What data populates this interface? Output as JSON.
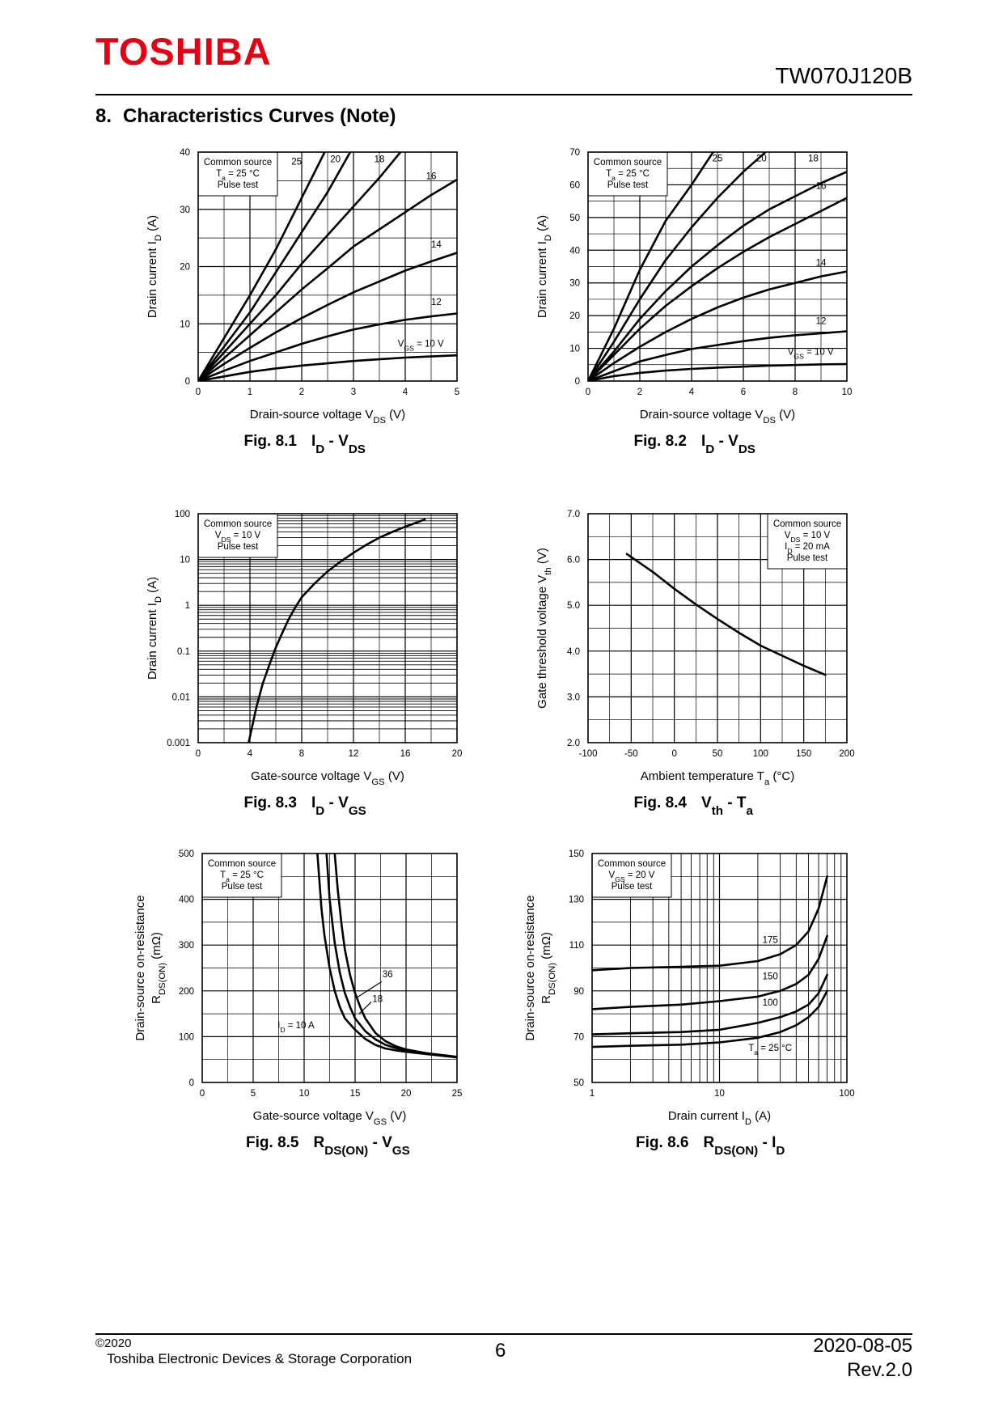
{
  "header": {
    "brand": "TOSHIBA",
    "doc_id": "TW070J120B",
    "section_number": "8.",
    "section_title": "Characteristics Curves (Note)"
  },
  "footer": {
    "copyright": "©2020",
    "company": "Toshiba Electronic Devices & Storage Corporation",
    "page": "6",
    "date": "2020-08-05",
    "revision": "Rev.2.0"
  },
  "chart_data": [
    {
      "id": "fig81",
      "type": "line",
      "fig_label": "Fig. 8.1",
      "fig_title": [
        "I",
        "D",
        " - V",
        "DS"
      ],
      "xlabel": [
        "Drain-source voltage  V",
        "DS",
        "  (V)"
      ],
      "ylabel": [
        "Drain current  I",
        "D",
        "  (A)"
      ],
      "x": {
        "scale": "linear",
        "min": 0,
        "max": 5,
        "ticks": [
          0,
          1,
          2,
          3,
          4,
          5
        ],
        "minor": 0.5
      },
      "y": {
        "scale": "linear",
        "min": 0,
        "max": 40,
        "ticks": [
          0,
          10,
          20,
          30,
          40
        ],
        "minor": 5
      },
      "legend_box": [
        [
          "Common source"
        ],
        [
          "T",
          "a",
          " = 25 °C"
        ],
        [
          "Pulse test"
        ]
      ],
      "series": [
        {
          "name": "25",
          "x": [
            0,
            0.5,
            1,
            1.5,
            2,
            2.5
          ],
          "y": [
            0,
            7.5,
            15,
            23,
            32,
            41
          ]
        },
        {
          "name": "20",
          "x": [
            0,
            0.5,
            1,
            1.5,
            2,
            2.5,
            3
          ],
          "y": [
            0,
            6,
            12,
            19,
            26,
            33,
            41
          ]
        },
        {
          "name": "18",
          "x": [
            0,
            0.5,
            1,
            1.5,
            2,
            2.5,
            3,
            3.5,
            4
          ],
          "y": [
            0,
            5,
            10,
            15,
            20.5,
            25.5,
            30.5,
            35.5,
            41
          ]
        },
        {
          "name": "16",
          "x": [
            0,
            0.5,
            1,
            1.5,
            2,
            2.5,
            3,
            3.5,
            4,
            4.5,
            5
          ],
          "y": [
            0,
            4,
            8,
            12,
            16,
            19.7,
            23.5,
            26.5,
            29.5,
            32.5,
            35.2
          ]
        },
        {
          "name": "14",
          "x": [
            0,
            0.5,
            1,
            1.5,
            2,
            2.5,
            3,
            3.5,
            4,
            4.5,
            5
          ],
          "y": [
            0,
            3,
            5.8,
            8.5,
            11,
            13.3,
            15.5,
            17.4,
            19.3,
            20.9,
            22.4
          ]
        },
        {
          "name": "12",
          "x": [
            0,
            0.5,
            1,
            1.5,
            2,
            2.5,
            3,
            3.5,
            4,
            4.5,
            5
          ],
          "y": [
            0,
            1.8,
            3.5,
            5,
            6.5,
            7.8,
            9,
            9.9,
            10.7,
            11.3,
            11.8
          ]
        },
        {
          "name": "V_GS = 10 V",
          "x": [
            0,
            0.5,
            1,
            1.5,
            2,
            2.5,
            3,
            3.5,
            4,
            4.5,
            5
          ],
          "y": [
            0,
            0.8,
            1.6,
            2.2,
            2.7,
            3.1,
            3.5,
            3.8,
            4.1,
            4.3,
            4.5
          ]
        }
      ],
      "curve_labels": [
        {
          "text": [
            "25"
          ],
          "x": 1.9,
          "y": 37.8
        },
        {
          "text": [
            "20"
          ],
          "x": 2.65,
          "y": 38.2
        },
        {
          "text": [
            "18"
          ],
          "x": 3.5,
          "y": 38.2
        },
        {
          "text": [
            "16"
          ],
          "x": 4.5,
          "y": 35.3
        },
        {
          "text": [
            "14"
          ],
          "x": 4.6,
          "y": 23.3
        },
        {
          "text": [
            "12"
          ],
          "x": 4.6,
          "y": 13.3
        },
        {
          "text": [
            "V",
            "GS",
            " = 10 V"
          ],
          "x": 4.3,
          "y": 6
        }
      ]
    },
    {
      "id": "fig82",
      "type": "line",
      "fig_label": "Fig. 8.2",
      "fig_title": [
        "I",
        "D",
        " - V",
        "DS"
      ],
      "xlabel": [
        "Drain-source voltage  V",
        "DS",
        "  (V)"
      ],
      "ylabel": [
        "Drain current  I",
        "D",
        "  (A)"
      ],
      "x": {
        "scale": "linear",
        "min": 0,
        "max": 10,
        "ticks": [
          0,
          2,
          4,
          6,
          8,
          10
        ],
        "minor": 1
      },
      "y": {
        "scale": "linear",
        "min": 0,
        "max": 70,
        "ticks": [
          0,
          10,
          20,
          30,
          40,
          50,
          60,
          70
        ],
        "minor": 5
      },
      "legend_box": [
        [
          "Common source"
        ],
        [
          "T",
          "a",
          " = 25 °C"
        ],
        [
          "Pulse test"
        ]
      ],
      "series": [
        {
          "name": "25",
          "x": [
            0,
            1,
            2,
            3,
            4,
            5
          ],
          "y": [
            0,
            16,
            34,
            49,
            60,
            72
          ]
        },
        {
          "name": "20",
          "x": [
            0,
            1,
            2,
            3,
            4,
            5,
            6,
            7
          ],
          "y": [
            0,
            12,
            25,
            37,
            47,
            56,
            64,
            71
          ]
        },
        {
          "name": "18",
          "x": [
            0,
            1,
            2,
            3,
            4,
            5,
            6,
            7,
            8,
            9,
            10
          ],
          "y": [
            0,
            9,
            19,
            27.5,
            35,
            41.5,
            47.5,
            52.5,
            56.5,
            60.5,
            64
          ]
        },
        {
          "name": "16",
          "x": [
            0,
            1,
            2,
            3,
            4,
            5,
            6,
            7,
            8,
            9,
            10
          ],
          "y": [
            0,
            8,
            16,
            23,
            29,
            34.5,
            39.5,
            44,
            48,
            52,
            56
          ]
        },
        {
          "name": "14",
          "x": [
            0,
            1,
            2,
            3,
            4,
            5,
            6,
            7,
            8,
            9,
            10
          ],
          "y": [
            0,
            5.5,
            10.5,
            15,
            19,
            22.5,
            25.5,
            28,
            30,
            32,
            33.5
          ]
        },
        {
          "name": "12",
          "x": [
            0,
            1,
            2,
            3,
            4,
            5,
            6,
            7,
            8,
            9,
            10
          ],
          "y": [
            0,
            3,
            6,
            8,
            9.8,
            11,
            12.2,
            13.2,
            14,
            14.6,
            15.2
          ]
        },
        {
          "name": "V_GS = 10 V",
          "x": [
            0,
            1,
            2,
            3,
            4,
            5,
            6,
            7,
            8,
            9,
            10
          ],
          "y": [
            0,
            1.5,
            2.5,
            3.2,
            3.7,
            4.1,
            4.4,
            4.7,
            4.9,
            5.1,
            5.2
          ]
        }
      ],
      "curve_labels": [
        {
          "text": [
            "25"
          ],
          "x": 5,
          "y": 67.2
        },
        {
          "text": [
            "20"
          ],
          "x": 6.7,
          "y": 67.2
        },
        {
          "text": [
            "18"
          ],
          "x": 8.7,
          "y": 67.2
        },
        {
          "text": [
            "16"
          ],
          "x": 9.0,
          "y": 58.8
        },
        {
          "text": [
            "14"
          ],
          "x": 9.0,
          "y": 35.3
        },
        {
          "text": [
            "12"
          ],
          "x": 9.0,
          "y": 17.5
        },
        {
          "text": [
            "V",
            "GS",
            " = 10 V"
          ],
          "x": 8.6,
          "y": 8
        }
      ]
    },
    {
      "id": "fig83",
      "type": "line",
      "fig_label": "Fig. 8.3",
      "fig_title": [
        "I",
        "D",
        " - V",
        "GS"
      ],
      "xlabel": [
        "Gate-source voltage  V",
        "GS",
        "  (V)"
      ],
      "ylabel": [
        "Drain current  I",
        "D",
        "  (A)"
      ],
      "x": {
        "scale": "linear",
        "min": 0,
        "max": 20,
        "ticks": [
          0,
          4,
          8,
          12,
          16,
          20
        ],
        "minor": 2
      },
      "y": {
        "scale": "log",
        "min": 0.001,
        "max": 100,
        "ticks": [
          0.001,
          0.01,
          0.1,
          1,
          10,
          100
        ],
        "tick_labels": [
          "0.001",
          "0.01",
          "0.1",
          "1",
          "10",
          "100"
        ]
      },
      "legend_box": [
        [
          "Common source"
        ],
        [
          "V",
          "DS",
          " = 10 V"
        ],
        [
          "Pulse test"
        ]
      ],
      "series": [
        {
          "name": "I_D",
          "x": [
            3.9,
            4.5,
            5,
            5.5,
            6,
            6.5,
            7,
            7.5,
            8,
            9,
            10,
            11,
            12,
            13,
            14,
            15,
            16,
            17.5
          ],
          "y": [
            0.001,
            0.006,
            0.02,
            0.05,
            0.12,
            0.25,
            0.5,
            0.9,
            1.5,
            3,
            5.5,
            9,
            14,
            21,
            30,
            40,
            52,
            75
          ]
        }
      ],
      "curve_labels": []
    },
    {
      "id": "fig84",
      "type": "line",
      "fig_label": "Fig. 8.4",
      "fig_title": [
        "V",
        "th",
        " - T",
        "a"
      ],
      "xlabel": [
        "Ambient temperature  T",
        "a",
        "  (°C)"
      ],
      "ylabel": [
        "Gate threshold voltage  V",
        "th",
        "  (V)"
      ],
      "x": {
        "scale": "linear",
        "min": -100,
        "max": 200,
        "ticks": [
          -100,
          -50,
          0,
          50,
          100,
          150,
          200
        ],
        "minor": 25
      },
      "y": {
        "scale": "linear",
        "min": 2.0,
        "max": 7.0,
        "ticks": [
          2.0,
          3.0,
          4.0,
          5.0,
          6.0,
          7.0
        ],
        "tick_labels": [
          "2.0",
          "3.0",
          "4.0",
          "5.0",
          "6.0",
          "7.0"
        ],
        "minor": 0.5
      },
      "legend_box": [
        [
          "Common source"
        ],
        [
          "V",
          "DS",
          " = 10 V"
        ],
        [
          "I",
          "D",
          " = 20 mA"
        ],
        [
          "Pulse test"
        ]
      ],
      "series": [
        {
          "name": "V_th",
          "x": [
            -55,
            -25,
            0,
            25,
            50,
            75,
            100,
            125,
            150,
            175
          ],
          "y": [
            6.12,
            5.73,
            5.36,
            5.02,
            4.7,
            4.4,
            4.12,
            3.9,
            3.68,
            3.48
          ]
        }
      ],
      "curve_labels": []
    },
    {
      "id": "fig85",
      "type": "line",
      "fig_label": "Fig. 8.5",
      "fig_title": [
        "R",
        "DS(ON)",
        " - V",
        "GS"
      ],
      "xlabel": [
        "Gate-source voltage  V",
        "GS",
        "  (V)"
      ],
      "ylabel": [
        "Drain-source on-resistance"
      ],
      "ylabel2": [
        "R",
        "DS(ON)",
        "  (mΩ)"
      ],
      "x": {
        "scale": "linear",
        "min": 0,
        "max": 25,
        "ticks": [
          0,
          5,
          10,
          15,
          20,
          25
        ],
        "minor": 2.5
      },
      "y": {
        "scale": "linear",
        "min": 0,
        "max": 500,
        "ticks": [
          0,
          100,
          200,
          300,
          400,
          500
        ],
        "minor": 50
      },
      "legend_box": [
        [
          "Common source"
        ],
        [
          "T",
          "a",
          " = 25 °C"
        ],
        [
          "Pulse test"
        ]
      ],
      "series": [
        {
          "name": "I_D = 10 A",
          "x": [
            11.3,
            11.7,
            12,
            12.5,
            13,
            13.5,
            14,
            15,
            16,
            17,
            18,
            19,
            20,
            22,
            25
          ],
          "y": [
            500,
            380,
            320,
            250,
            200,
            165,
            140,
            115,
            95,
            82,
            74,
            70,
            67,
            62,
            55
          ]
        },
        {
          "name": "18",
          "x": [
            12.2,
            12.5,
            13,
            13.5,
            14,
            14.5,
            15,
            16,
            17,
            18,
            19,
            20,
            22,
            25
          ],
          "y": [
            500,
            400,
            305,
            240,
            195,
            165,
            140,
            112,
            94,
            82,
            75,
            70,
            63,
            55
          ]
        },
        {
          "name": "36",
          "x": [
            13,
            13.3,
            13.7,
            14,
            14.5,
            15,
            15.5,
            16,
            17,
            18,
            19,
            20,
            22,
            25
          ],
          "y": [
            500,
            420,
            340,
            290,
            235,
            195,
            165,
            140,
            108,
            90,
            79,
            72,
            64,
            56
          ]
        }
      ],
      "curve_labels": [
        {
          "text": [
            "36"
          ],
          "x": 18.2,
          "y": 230
        },
        {
          "text": [
            "18"
          ],
          "x": 17.2,
          "y": 176
        },
        {
          "text": [
            "I",
            "D",
            " = 10 A"
          ],
          "x": 9.2,
          "y": 118
        }
      ]
    },
    {
      "id": "fig86",
      "type": "line",
      "fig_label": "Fig. 8.6",
      "fig_title": [
        "R",
        "DS(ON)",
        " - I",
        "D"
      ],
      "xlabel": [
        "Drain current  I",
        "D",
        "  (A)"
      ],
      "ylabel": [
        "Drain-source on-resistance"
      ],
      "ylabel2": [
        "R",
        "DS(ON)",
        "  (mΩ)"
      ],
      "x": {
        "scale": "log",
        "min": 1,
        "max": 100,
        "ticks": [
          1,
          10,
          100
        ],
        "tick_labels": [
          "1",
          "10",
          "100"
        ]
      },
      "y": {
        "scale": "linear",
        "min": 50,
        "max": 150,
        "ticks": [
          50,
          70,
          90,
          110,
          130,
          150
        ],
        "minor": 10
      },
      "legend_box": [
        [
          "Common source"
        ],
        [
          "V",
          "GS",
          " = 20 V"
        ],
        [
          "Pulse test"
        ]
      ],
      "series": [
        {
          "name": "175",
          "x": [
            1,
            2,
            5,
            10,
            20,
            30,
            40,
            50,
            60,
            70
          ],
          "y": [
            99,
            100,
            100.5,
            101,
            103,
            106,
            110,
            116,
            126,
            140
          ]
        },
        {
          "name": "150",
          "x": [
            1,
            2,
            5,
            10,
            20,
            30,
            40,
            50,
            60,
            70
          ],
          "y": [
            82,
            83,
            84,
            85.5,
            87.5,
            90,
            93,
            97,
            104,
            114
          ]
        },
        {
          "name": "100",
          "x": [
            1,
            2,
            5,
            10,
            20,
            30,
            40,
            50,
            60,
            70
          ],
          "y": [
            71,
            71.5,
            72,
            73,
            76,
            78.5,
            81,
            84,
            89,
            97
          ]
        },
        {
          "name": "T_a = 25 °C",
          "x": [
            1,
            2,
            5,
            10,
            20,
            30,
            40,
            50,
            60,
            70
          ],
          "y": [
            65.5,
            66,
            66.5,
            67.5,
            69.5,
            72,
            75,
            78.5,
            83,
            90
          ]
        }
      ],
      "curve_labels": [
        {
          "text": [
            "175"
          ],
          "x": 25,
          "y": 111
        },
        {
          "text": [
            "150"
          ],
          "x": 25,
          "y": 95
        },
        {
          "text": [
            "100"
          ],
          "x": 25,
          "y": 83.5
        },
        {
          "text": [
            "T",
            "a",
            " = 25 °C"
          ],
          "x": 25,
          "y": 63.8
        }
      ]
    }
  ]
}
